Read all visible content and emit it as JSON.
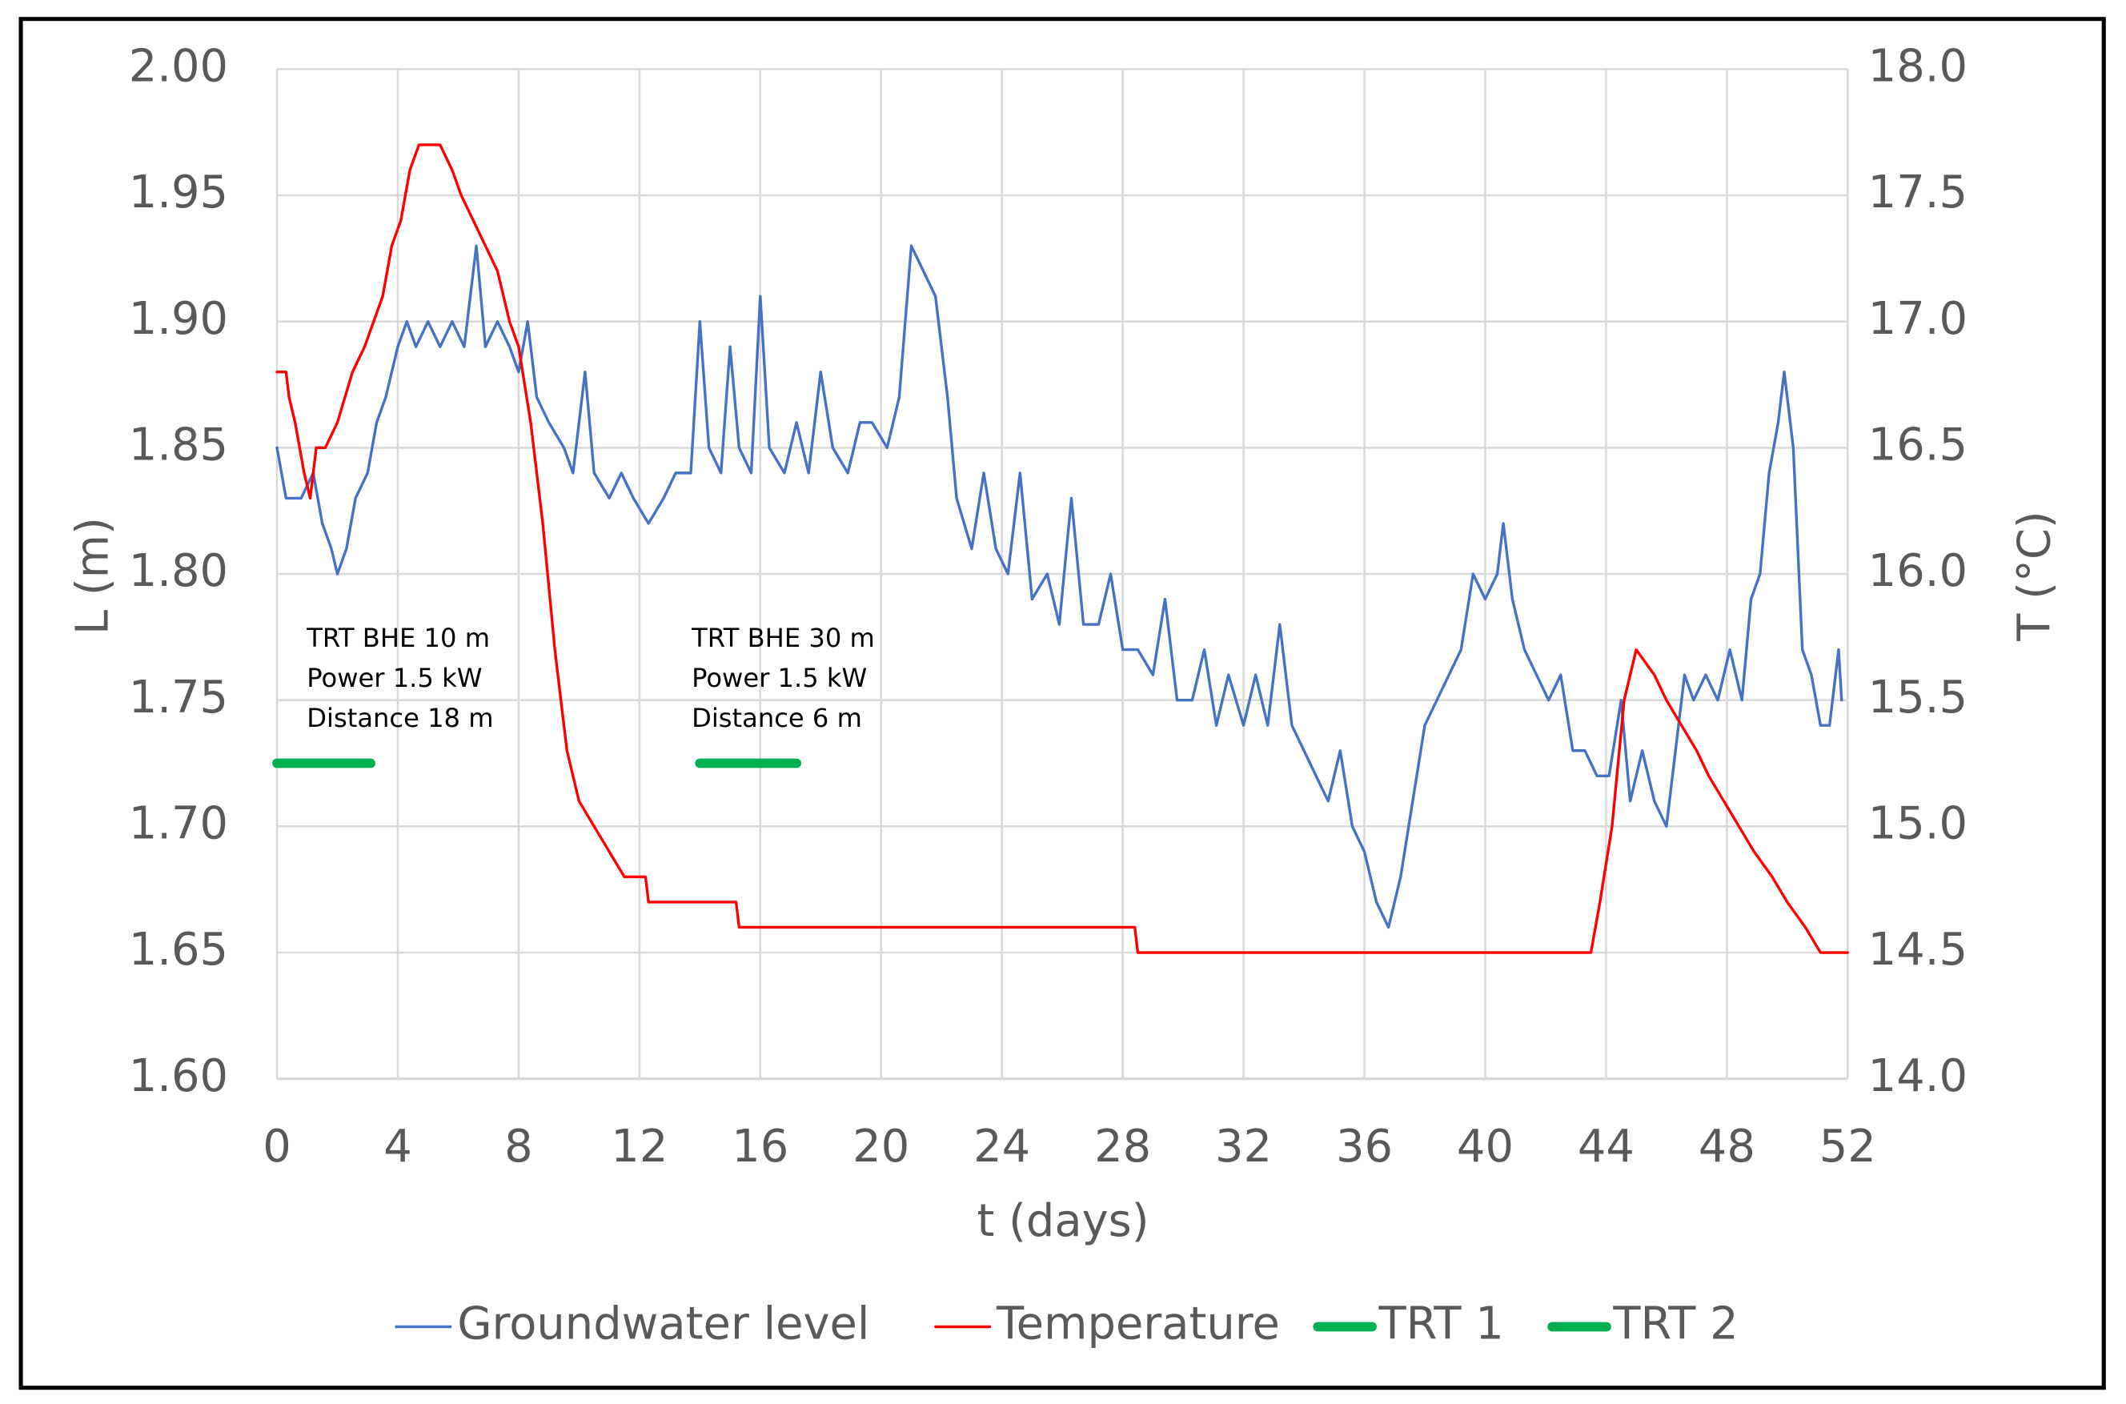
{
  "chart_data": {
    "type": "line",
    "xlabel": "t (days)",
    "ylabel": "L (m)",
    "y2label": "T (°C)",
    "xlim": [
      0,
      52
    ],
    "xticks": [
      0,
      4,
      8,
      12,
      16,
      20,
      24,
      28,
      32,
      36,
      40,
      44,
      48,
      52
    ],
    "ylim": [
      1.6,
      2.0
    ],
    "yticks": [
      {
        "value": 1.6,
        "label": "1.60"
      },
      {
        "value": 1.65,
        "label": "1.65"
      },
      {
        "value": 1.7,
        "label": "1.70"
      },
      {
        "value": 1.75,
        "label": "1.75"
      },
      {
        "value": 1.8,
        "label": "1.80"
      },
      {
        "value": 1.85,
        "label": "1.85"
      },
      {
        "value": 1.9,
        "label": "1.90"
      },
      {
        "value": 1.95,
        "label": "1.95"
      },
      {
        "value": 2.0,
        "label": "2.00"
      }
    ],
    "y2lim": [
      14,
      18
    ],
    "y2ticks": [
      {
        "value": 14,
        "label": "14.0"
      },
      {
        "value": 14.5,
        "label": "14.5"
      },
      {
        "value": 15,
        "label": "15.0"
      },
      {
        "value": 15.5,
        "label": "15.5"
      },
      {
        "value": 16,
        "label": "16.0"
      },
      {
        "value": 16.5,
        "label": "16.5"
      },
      {
        "value": 17,
        "label": "17.0"
      },
      {
        "value": 17.5,
        "label": "17.5"
      },
      {
        "value": 18,
        "label": "18.0"
      }
    ],
    "grid": true,
    "legend": "bottom",
    "annotations": [
      {
        "lines": [
          "TRT BHE 10 m",
          "Power 1.5 kW",
          "Distance 18 m"
        ]
      },
      {
        "lines": [
          "TRT BHE 30 m",
          "Power 1.5 kW",
          "Distance 6 m"
        ]
      }
    ],
    "series": [
      {
        "name": "Groundwater level",
        "color": "#4472c4",
        "width": 2,
        "x": [
          0,
          0.3,
          0.8,
          1.2,
          1.5,
          1.8,
          2.0,
          2.3,
          2.6,
          3.0,
          3.3,
          3.6,
          4.0,
          4.3,
          4.6,
          5.0,
          5.4,
          5.8,
          6.2,
          6.6,
          6.9,
          7.3,
          7.7,
          8.0,
          8.3,
          8.6,
          9.0,
          9.5,
          9.8,
          10.2,
          10.5,
          11.0,
          11.4,
          11.8,
          12.3,
          12.8,
          13.2,
          13.7,
          14.0,
          14.3,
          14.7,
          15.0,
          15.3,
          15.7,
          16.0,
          16.3,
          16.8,
          17.2,
          17.6,
          18.0,
          18.4,
          18.9,
          19.3,
          19.7,
          20.2,
          20.6,
          21.0,
          21.4,
          21.8,
          22.2,
          22.5,
          23.0,
          23.4,
          23.8,
          24.2,
          24.6,
          25.0,
          25.5,
          25.9,
          26.3,
          26.7,
          27.2,
          27.6,
          28.0,
          28.5,
          29.0,
          29.4,
          29.8,
          30.3,
          30.7,
          31.1,
          31.5,
          32.0,
          32.4,
          32.8,
          33.2,
          33.6,
          34.0,
          34.4,
          34.8,
          35.2,
          35.6,
          36.0,
          36.4,
          36.8,
          37.2,
          37.6,
          38.0,
          38.4,
          38.8,
          39.2,
          39.6,
          40.0,
          40.4,
          40.6,
          40.9,
          41.3,
          41.7,
          42.1,
          42.5,
          42.9,
          43.3,
          43.7,
          44.1,
          44.5,
          44.8,
          45.2,
          45.6,
          46.0,
          46.3,
          46.6,
          46.9,
          47.3,
          47.7,
          48.1,
          48.5,
          48.8,
          49.1,
          49.4,
          49.7,
          49.9,
          50.2,
          50.5,
          50.8,
          51.1,
          51.4,
          51.7,
          51.8
        ],
        "values": [
          1.85,
          1.83,
          1.83,
          1.84,
          1.82,
          1.81,
          1.8,
          1.81,
          1.83,
          1.84,
          1.86,
          1.87,
          1.89,
          1.9,
          1.89,
          1.9,
          1.89,
          1.9,
          1.89,
          1.93,
          1.89,
          1.9,
          1.89,
          1.88,
          1.9,
          1.87,
          1.86,
          1.85,
          1.84,
          1.88,
          1.84,
          1.83,
          1.84,
          1.83,
          1.82,
          1.83,
          1.84,
          1.84,
          1.9,
          1.85,
          1.84,
          1.89,
          1.85,
          1.84,
          1.91,
          1.85,
          1.84,
          1.86,
          1.84,
          1.88,
          1.85,
          1.84,
          1.86,
          1.86,
          1.85,
          1.87,
          1.93,
          1.92,
          1.91,
          1.87,
          1.83,
          1.81,
          1.84,
          1.81,
          1.8,
          1.84,
          1.79,
          1.8,
          1.78,
          1.83,
          1.78,
          1.78,
          1.8,
          1.77,
          1.77,
          1.76,
          1.79,
          1.75,
          1.75,
          1.77,
          1.74,
          1.76,
          1.74,
          1.76,
          1.74,
          1.78,
          1.74,
          1.73,
          1.72,
          1.71,
          1.73,
          1.7,
          1.69,
          1.67,
          1.66,
          1.68,
          1.71,
          1.74,
          1.75,
          1.76,
          1.77,
          1.8,
          1.79,
          1.8,
          1.82,
          1.79,
          1.77,
          1.76,
          1.75,
          1.76,
          1.73,
          1.73,
          1.72,
          1.72,
          1.75,
          1.71,
          1.73,
          1.71,
          1.7,
          1.73,
          1.76,
          1.75,
          1.76,
          1.75,
          1.77,
          1.75,
          1.79,
          1.8,
          1.84,
          1.86,
          1.88,
          1.85,
          1.77,
          1.76,
          1.74,
          1.74,
          1.77,
          1.75
        ]
      },
      {
        "name": "Temperature",
        "color": "#ff0000",
        "width": 2,
        "axis": "y2",
        "x": [
          0,
          0.3,
          0.4,
          0.6,
          0.9,
          1.1,
          1.3,
          1.6,
          2.0,
          2.5,
          2.9,
          3.2,
          3.5,
          3.8,
          4.1,
          4.4,
          4.7,
          5.4,
          5.8,
          6.1,
          6.5,
          6.9,
          7.3,
          7.7,
          8.0,
          8.4,
          8.8,
          9.2,
          9.6,
          10.0,
          10.5,
          11.0,
          11.5,
          12.2,
          12.3,
          15.2,
          15.3,
          28.4,
          28.5,
          30.5,
          43.5,
          43.8,
          44.2,
          44.6,
          45.0,
          45.6,
          46.0,
          46.5,
          47.0,
          47.4,
          47.9,
          48.4,
          48.9,
          49.5,
          50.0,
          50.6,
          51.1,
          52.0
        ],
        "values": [
          16.8,
          16.8,
          16.7,
          16.6,
          16.4,
          16.3,
          16.5,
          16.5,
          16.6,
          16.8,
          16.9,
          17.0,
          17.1,
          17.3,
          17.4,
          17.6,
          17.7,
          17.7,
          17.6,
          17.5,
          17.4,
          17.3,
          17.2,
          17.0,
          16.9,
          16.6,
          16.2,
          15.7,
          15.3,
          15.1,
          15.0,
          14.9,
          14.8,
          14.8,
          14.7,
          14.7,
          14.6,
          14.6,
          14.5,
          14.5,
          14.5,
          14.7,
          15.0,
          15.5,
          15.7,
          15.6,
          15.5,
          15.4,
          15.3,
          15.2,
          15.1,
          15.0,
          14.9,
          14.8,
          14.7,
          14.6,
          14.5,
          14.5
        ]
      },
      {
        "name": "TRT 1",
        "color": "#00b050",
        "width": 7,
        "x": [
          0,
          3.1
        ],
        "values": [
          1.725,
          1.725
        ]
      },
      {
        "name": "TRT 2",
        "color": "#00b050",
        "width": 7,
        "x": [
          14,
          17.2
        ],
        "values": [
          1.725,
          1.725
        ]
      }
    ]
  }
}
